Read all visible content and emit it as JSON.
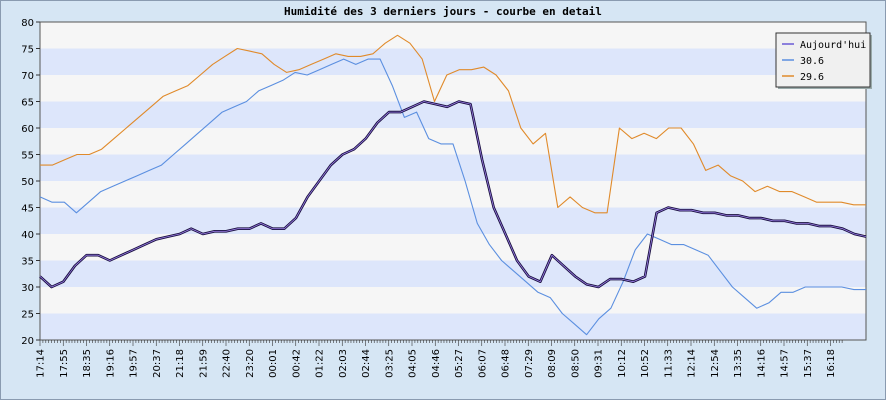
{
  "chart_data": {
    "type": "line",
    "title": "Humidité des 3 derniers jours - courbe en detail",
    "xlabel": "",
    "ylabel": "",
    "ylim": [
      20,
      80
    ],
    "y_ticks": [
      20,
      25,
      30,
      35,
      40,
      45,
      50,
      55,
      60,
      65,
      70,
      75,
      80
    ],
    "x_tick_labels": [
      "17:14",
      "17:55",
      "18:35",
      "19:16",
      "19:57",
      "20:37",
      "21:18",
      "21:59",
      "22:40",
      "23:20",
      "00:01",
      "00:42",
      "01:22",
      "02:03",
      "02:44",
      "03:25",
      "04:05",
      "04:46",
      "05:27",
      "06:07",
      "06:48",
      "07:29",
      "08:09",
      "08:50",
      "09:31",
      "10:12",
      "10:52",
      "11:33",
      "12:14",
      "12:54",
      "13:35",
      "14:16",
      "14:57",
      "15:37",
      "16:18"
    ],
    "grid": "horizontal bands",
    "legend_position": "top-right",
    "series": [
      {
        "name": "Aujourd'hui",
        "color": "#1a1040",
        "values": [
          32,
          30,
          31,
          34,
          36,
          36,
          35,
          36,
          37,
          38,
          39,
          39.5,
          40,
          41,
          40,
          40.5,
          40.5,
          41,
          41,
          42,
          41,
          41,
          43,
          47,
          50,
          53,
          55,
          56,
          58,
          61,
          63,
          63,
          64,
          65,
          64.5,
          64,
          65,
          64.5,
          54,
          45,
          40,
          35,
          32,
          31,
          36,
          34,
          32,
          30.5,
          30,
          31.5,
          31.5,
          31,
          32,
          44,
          45,
          44.5,
          44.5,
          44,
          44,
          43.5,
          43.5,
          43,
          43,
          42.5,
          42.5,
          42,
          42,
          41.5,
          41.5,
          41,
          40,
          39.5
        ]
      },
      {
        "name": "30.6",
        "color": "#5b8fe0",
        "values": [
          47,
          46,
          46,
          44,
          46,
          48,
          49,
          50,
          51,
          52,
          53,
          55,
          57,
          59,
          61,
          63,
          64,
          65,
          67,
          68,
          69,
          70.5,
          70,
          71,
          72,
          73,
          72,
          73,
          73,
          68,
          62,
          63,
          58,
          57,
          57,
          50,
          42,
          38,
          35,
          33,
          31,
          29,
          28,
          25,
          23,
          21,
          24,
          26,
          31,
          37,
          40,
          39,
          38,
          38,
          37,
          36,
          33,
          30,
          28,
          26,
          27,
          29,
          29,
          30,
          30,
          30,
          30,
          29.5,
          29.5
        ]
      },
      {
        "name": "29.6",
        "color": "#e08a2a",
        "values": [
          53,
          53,
          54,
          55,
          55,
          56,
          58,
          60,
          62,
          64,
          66,
          67,
          68,
          70,
          72,
          73.5,
          75,
          74.5,
          74,
          72,
          70.5,
          71,
          72,
          73,
          74,
          73.5,
          73.5,
          74,
          76,
          77.5,
          76,
          73,
          65,
          70,
          71,
          71,
          71.5,
          70,
          67,
          60,
          57,
          59,
          45,
          47,
          45,
          44,
          44,
          60,
          58,
          59,
          58,
          60,
          60,
          57,
          52,
          53,
          51,
          50,
          48,
          49,
          48,
          48,
          47,
          46,
          46,
          46,
          45.5,
          45.5
        ]
      }
    ]
  }
}
